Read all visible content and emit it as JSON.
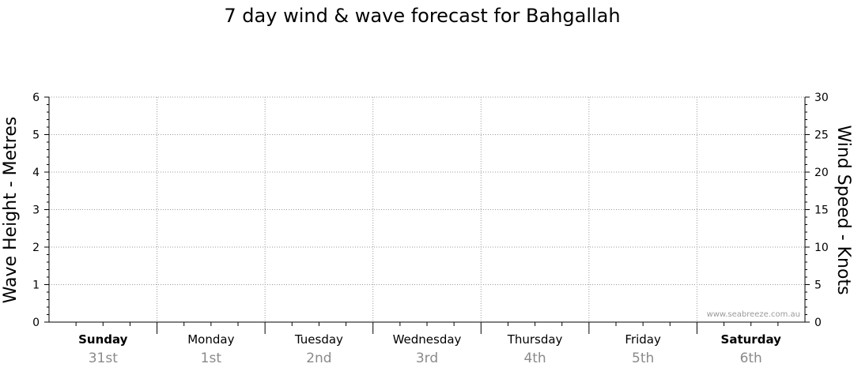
{
  "chart_data": {
    "type": "line",
    "title": "7 day wind & wave forecast for Bahgallah",
    "ylabel_left": "Wave Height - Metres",
    "ylabel_right": "Wind Speed - Knots",
    "ylim_left": [
      0,
      6
    ],
    "ylim_right": [
      0,
      30
    ],
    "yticks_left": [
      "0",
      "1",
      "2",
      "3",
      "4",
      "5",
      "6"
    ],
    "yticks_right": [
      "0",
      "5",
      "10",
      "15",
      "20",
      "25",
      "30"
    ],
    "grid": true,
    "days": [
      {
        "name": "Sunday",
        "date": "31st",
        "weekend": true
      },
      {
        "name": "Monday",
        "date": "1st",
        "weekend": false
      },
      {
        "name": "Tuesday",
        "date": "2nd",
        "weekend": false
      },
      {
        "name": "Wednesday",
        "date": "3rd",
        "weekend": false
      },
      {
        "name": "Thursday",
        "date": "4th",
        "weekend": false
      },
      {
        "name": "Friday",
        "date": "5th",
        "weekend": false
      },
      {
        "name": "Saturday",
        "date": "6th",
        "weekend": true
      }
    ],
    "series": [],
    "watermark": "www.seabreeze.com.au"
  }
}
